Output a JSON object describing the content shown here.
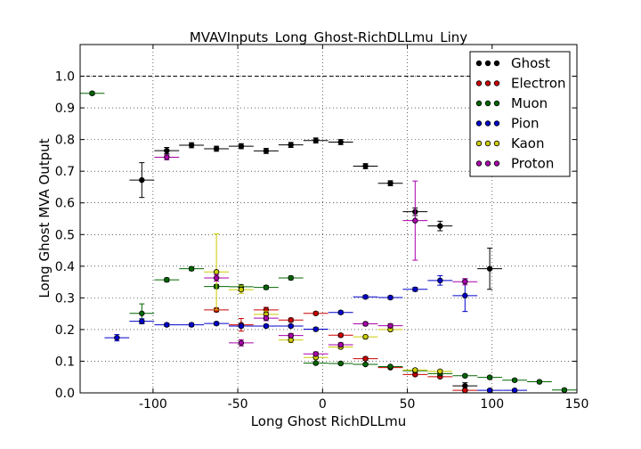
{
  "chart_data": {
    "type": "scatter",
    "title": "MVAVInputs_Long_Ghost-RichDLLmu_Liny",
    "xlabel": "Long Ghost RichDLLmu",
    "ylabel": "Long Ghost MVA Output",
    "xlim": [
      -143,
      150
    ],
    "ylim": [
      0.0,
      1.1
    ],
    "xticks": [
      "-100",
      "-50",
      "0",
      "50",
      "100",
      "150"
    ],
    "xtick_values": [
      -100,
      -50,
      0,
      50,
      100,
      150
    ],
    "yticks": [
      "0.0",
      "0.1",
      "0.2",
      "0.3",
      "0.4",
      "0.5",
      "0.6",
      "0.7",
      "0.8",
      "0.9",
      "1.0"
    ],
    "ytick_values": [
      0.0,
      0.1,
      0.2,
      0.3,
      0.4,
      0.5,
      0.6,
      0.7,
      0.8,
      0.9,
      1.0
    ],
    "grid": true,
    "reference_line": 1.0,
    "legend_position": "top-right",
    "bin_half_width": 7.3,
    "series": [
      {
        "name": "Ghost",
        "color": "#000000",
        "points": [
          [
            -106.6,
            0.672,
            0.055
          ],
          [
            -91.9,
            0.765,
            0.01
          ],
          [
            -77.3,
            0.782,
            0.008
          ],
          [
            -62.6,
            0.771,
            0.008
          ],
          [
            -48.0,
            0.779,
            0.008
          ],
          [
            -33.3,
            0.764,
            0.008
          ],
          [
            -18.7,
            0.783,
            0.008
          ],
          [
            -4.0,
            0.797,
            0.008
          ],
          [
            10.7,
            0.792,
            0.008
          ],
          [
            25.3,
            0.716,
            0.008
          ],
          [
            40.0,
            0.662,
            0.008
          ],
          [
            54.6,
            0.572,
            0.012
          ],
          [
            69.3,
            0.527,
            0.015
          ],
          [
            84.0,
            0.022,
            0.01
          ],
          [
            98.6,
            0.392,
            0.065
          ]
        ]
      },
      {
        "name": "Electron",
        "color": "#cc0000",
        "points": [
          [
            -62.6,
            0.262,
            0.006
          ],
          [
            -48.0,
            0.215,
            0.02
          ],
          [
            -33.3,
            0.262,
            0.008
          ],
          [
            -18.7,
            0.23,
            0.006
          ],
          [
            -4.0,
            0.251,
            0.005
          ],
          [
            10.7,
            0.182,
            0.005
          ],
          [
            25.3,
            0.108,
            0.005
          ],
          [
            40.0,
            0.08,
            0.004
          ],
          [
            54.6,
            0.058,
            0.004
          ],
          [
            69.3,
            0.051,
            0.004
          ],
          [
            84.0,
            0.008,
            0.004
          ]
        ]
      },
      {
        "name": "Muon",
        "color": "#006600",
        "points": [
          [
            -135.9,
            0.946,
            0.005
          ],
          [
            -106.6,
            0.251,
            0.03
          ],
          [
            -91.9,
            0.357,
            0.006
          ],
          [
            -77.3,
            0.392,
            0.006
          ],
          [
            -62.6,
            0.336,
            0.006
          ],
          [
            -48.0,
            0.335,
            0.006
          ],
          [
            -33.3,
            0.333,
            0.006
          ],
          [
            -18.7,
            0.363,
            0.006
          ],
          [
            -4.0,
            0.094,
            0.004
          ],
          [
            10.7,
            0.093,
            0.004
          ],
          [
            25.3,
            0.09,
            0.004
          ],
          [
            40.0,
            0.083,
            0.004
          ],
          [
            54.6,
            0.07,
            0.004
          ],
          [
            69.3,
            0.061,
            0.004
          ],
          [
            84.0,
            0.054,
            0.004
          ],
          [
            98.6,
            0.049,
            0.004
          ],
          [
            113.3,
            0.04,
            0.004
          ],
          [
            127.9,
            0.035,
            0.004
          ],
          [
            142.6,
            0.009,
            0.004
          ]
        ]
      },
      {
        "name": "Pion",
        "color": "#0000cc",
        "points": [
          [
            -121.3,
            0.174,
            0.01
          ],
          [
            -106.6,
            0.226,
            0.008
          ],
          [
            -91.9,
            0.215,
            0.005
          ],
          [
            -77.3,
            0.215,
            0.005
          ],
          [
            -62.6,
            0.219,
            0.005
          ],
          [
            -48.0,
            0.211,
            0.005
          ],
          [
            -33.3,
            0.211,
            0.005
          ],
          [
            -18.7,
            0.211,
            0.005
          ],
          [
            -4.0,
            0.201,
            0.005
          ],
          [
            10.7,
            0.254,
            0.005
          ],
          [
            25.3,
            0.303,
            0.005
          ],
          [
            40.0,
            0.301,
            0.005
          ],
          [
            54.6,
            0.327,
            0.006
          ],
          [
            69.3,
            0.355,
            0.015
          ],
          [
            84.0,
            0.307,
            0.05
          ],
          [
            98.6,
            0.008,
            0.003
          ],
          [
            113.3,
            0.008,
            0.003
          ]
        ]
      },
      {
        "name": "Kaon",
        "color": "#cccc00",
        "points": [
          [
            -62.6,
            0.382,
            0.12
          ],
          [
            -48.0,
            0.326,
            0.012
          ],
          [
            -33.3,
            0.248,
            0.01
          ],
          [
            -18.7,
            0.167,
            0.008
          ],
          [
            -4.0,
            0.112,
            0.006
          ],
          [
            10.7,
            0.145,
            0.006
          ],
          [
            25.3,
            0.177,
            0.006
          ],
          [
            40.0,
            0.2,
            0.006
          ],
          [
            54.6,
            0.072,
            0.005
          ],
          [
            69.3,
            0.068,
            0.005
          ]
        ]
      },
      {
        "name": "Proton",
        "color": "#aa00aa",
        "points": [
          [
            -91.9,
            0.744,
            0.008
          ],
          [
            -62.6,
            0.363,
            0.01
          ],
          [
            -48.0,
            0.158,
            0.01
          ],
          [
            -33.3,
            0.236,
            0.008
          ],
          [
            -18.7,
            0.181,
            0.006
          ],
          [
            -4.0,
            0.123,
            0.006
          ],
          [
            10.7,
            0.152,
            0.006
          ],
          [
            25.3,
            0.218,
            0.006
          ],
          [
            40.0,
            0.212,
            0.006
          ],
          [
            54.6,
            0.544,
            0.125
          ],
          [
            84.0,
            0.351,
            0.01
          ]
        ]
      }
    ]
  }
}
